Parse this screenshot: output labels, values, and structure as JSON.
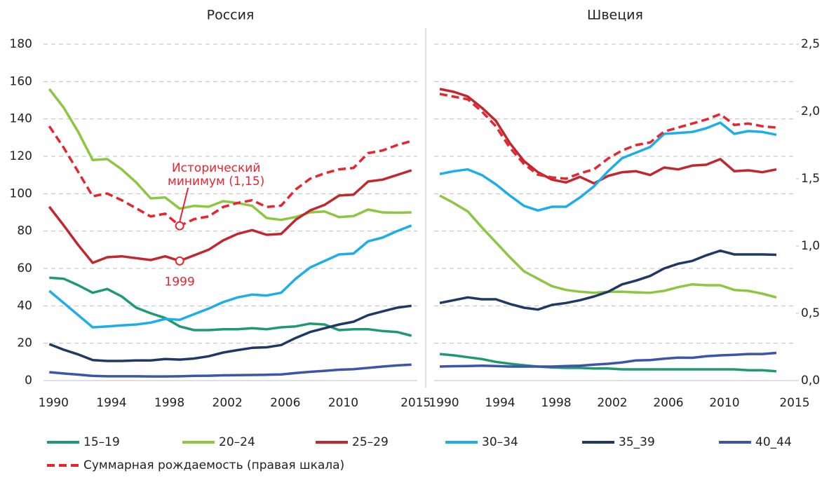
{
  "chart_data": [
    {
      "type": "line",
      "title": "Россия",
      "x": [
        1990,
        1991,
        1992,
        1993,
        1994,
        1995,
        1996,
        1997,
        1998,
        1999,
        2000,
        2001,
        2002,
        2003,
        2004,
        2005,
        2006,
        2007,
        2008,
        2009,
        2010,
        2011,
        2012,
        2013,
        2014,
        2015
      ],
      "xlim": [
        1989.6,
        2015.4
      ],
      "xticks": [
        1990,
        1994,
        1998,
        2002,
        2006,
        2010,
        2015
      ],
      "ylim": [
        0,
        180
      ],
      "yticks": [
        0,
        20,
        40,
        60,
        80,
        100,
        120,
        140,
        160,
        180
      ],
      "y2lim": [
        0,
        2.5
      ],
      "grid": true,
      "series": [
        {
          "name": "15–19",
          "color": "#1f9a70",
          "values": [
            55,
            54.5,
            51,
            47,
            49,
            45,
            39,
            36,
            33.5,
            29,
            27,
            27,
            27.5,
            27.5,
            28,
            27.5,
            28.5,
            29,
            30.5,
            30,
            27,
            27.5,
            27.5,
            26.5,
            26,
            24
          ]
        },
        {
          "name": "20–24",
          "color": "#8dc63f",
          "values": [
            156,
            146,
            133,
            118,
            118.5,
            113,
            106,
            97.5,
            98,
            92,
            93.5,
            93,
            96,
            95,
            93.5,
            87,
            86,
            87.5,
            90,
            90.5,
            87.5,
            88,
            91.5,
            90,
            89.8,
            90
          ]
        },
        {
          "name": "25–29",
          "color": "#c1272d",
          "values": [
            93,
            83,
            72.5,
            63,
            66,
            66.5,
            65.5,
            64.5,
            66.5,
            64,
            67,
            70,
            75,
            78.5,
            80.5,
            78,
            78.5,
            86,
            91,
            94,
            99,
            99.5,
            106.5,
            107.5,
            110,
            112.5
          ]
        },
        {
          "name": "30–34",
          "color": "#1baee8",
          "values": [
            48,
            41.5,
            35,
            28.5,
            29,
            29.5,
            30,
            31,
            33,
            32.5,
            35.5,
            38.5,
            42,
            44.5,
            46,
            45.5,
            47,
            54.5,
            60.5,
            64,
            67.5,
            68,
            74.5,
            76.5,
            80,
            83
          ]
        },
        {
          "name": "35_39",
          "color": "#1f3864",
          "values": [
            19.5,
            16.5,
            14,
            11,
            10.5,
            10.5,
            10.8,
            10.8,
            11.5,
            11.2,
            11.8,
            13,
            15,
            16.3,
            17.5,
            17.8,
            19,
            22.8,
            26,
            28,
            30,
            31.5,
            35,
            37,
            39,
            40
          ]
        },
        {
          "name": "40_44",
          "color": "#3c55a8",
          "values": [
            4.5,
            3.8,
            3.2,
            2.5,
            2.3,
            2.3,
            2.3,
            2.2,
            2.2,
            2.3,
            2.5,
            2.6,
            2.8,
            2.9,
            3,
            3.1,
            3.3,
            4,
            4.7,
            5.2,
            5.8,
            6.1,
            6.8,
            7.5,
            8.1,
            8.5
          ]
        },
        {
          "name": "Суммарная рождаемость (правая шкала)",
          "color": "#e8242f",
          "axis": "y2",
          "dashed": true,
          "values": [
            1.89,
            1.73,
            1.55,
            1.37,
            1.39,
            1.34,
            1.28,
            1.22,
            1.24,
            1.15,
            1.2,
            1.22,
            1.29,
            1.32,
            1.34,
            1.29,
            1.3,
            1.42,
            1.5,
            1.54,
            1.57,
            1.58,
            1.69,
            1.71,
            1.75,
            1.78
          ]
        }
      ],
      "annotations": [
        {
          "text": "Исторический минимум (1,15)",
          "series": 6,
          "index": 9
        },
        {
          "text": "1999",
          "series": 2,
          "index": 9
        }
      ]
    },
    {
      "type": "line",
      "title": "Швеция",
      "x": [
        1990,
        1991,
        1992,
        1993,
        1994,
        1995,
        1996,
        1997,
        1998,
        1999,
        2000,
        2001,
        2002,
        2003,
        2004,
        2005,
        2006,
        2007,
        2008,
        2009,
        2010,
        2011,
        2012,
        2013,
        2014
      ],
      "xlim": [
        1989.6,
        2015.4
      ],
      "xticks": [
        1990,
        1994,
        1998,
        2002,
        2006,
        2010,
        2015
      ],
      "ylim": [
        0,
        180
      ],
      "yticks": [
        0,
        20,
        40,
        60,
        80,
        100,
        120,
        140,
        160,
        180
      ],
      "y2lim": [
        0,
        2.5
      ],
      "y2ticks": [
        {
          "value": 0,
          "label": "0,0"
        },
        {
          "value": 0.5,
          "label": "0,5"
        },
        {
          "value": 1,
          "label": "1,0"
        },
        {
          "value": 1.5,
          "label": "1,5"
        },
        {
          "value": 2,
          "label": "2,0"
        },
        {
          "value": 2.5,
          "label": "2,5"
        }
      ],
      "grid": true,
      "series": [
        {
          "color": "#1f9a70",
          "values": [
            14.2,
            13.5,
            12.5,
            11.5,
            10,
            9,
            8.2,
            7.5,
            7,
            6.8,
            6.8,
            6.5,
            6.5,
            6,
            6,
            6,
            6,
            6,
            6,
            6,
            6,
            6,
            5.5,
            5.5,
            5
          ]
        },
        {
          "color": "#8dc63f",
          "values": [
            99,
            95,
            90.5,
            82,
            74,
            66,
            58.5,
            54.5,
            50.5,
            48.5,
            47.5,
            47,
            47.5,
            47.5,
            47.2,
            47,
            48,
            50,
            51.5,
            51,
            51,
            48.5,
            48,
            46.5,
            44.5
          ]
        },
        {
          "color": "#c1272d",
          "values": [
            156,
            154.5,
            152,
            146,
            139,
            127,
            117.5,
            111.5,
            107.5,
            106,
            109,
            105.5,
            109.5,
            111.5,
            112,
            110,
            114,
            113,
            115,
            115.5,
            118.5,
            112,
            112.5,
            111.5,
            113
          ]
        },
        {
          "color": "#1baee8",
          "values": [
            110.5,
            112,
            113,
            110,
            105,
            99,
            93.5,
            91,
            93,
            93,
            98,
            104,
            112,
            119,
            122,
            125,
            132,
            132.5,
            133,
            135,
            138,
            132,
            133.5,
            133,
            131.5
          ]
        },
        {
          "color": "#1f3864",
          "values": [
            41.5,
            43,
            44.5,
            43.5,
            43.5,
            41,
            39,
            38,
            40.5,
            41.5,
            43,
            45,
            47.5,
            51.5,
            53.5,
            56,
            60,
            62.5,
            64,
            67,
            69.5,
            67.5,
            67.5,
            67.5,
            67.3
          ]
        },
        {
          "color": "#3c55a8",
          "values": [
            7.5,
            7.7,
            7.8,
            8,
            7.8,
            7.5,
            7.5,
            7.5,
            7.5,
            7.8,
            8,
            8.5,
            9,
            9.7,
            10.8,
            11,
            11.7,
            12.3,
            12.2,
            13,
            13.5,
            13.8,
            14.2,
            14.2,
            14.8
          ]
        },
        {
          "color": "#e8242f",
          "axis": "y2",
          "dashed": true,
          "values": [
            2.13,
            2.11,
            2.09,
            2,
            1.89,
            1.73,
            1.61,
            1.53,
            1.51,
            1.5,
            1.54,
            1.57,
            1.65,
            1.71,
            1.75,
            1.77,
            1.85,
            1.88,
            1.91,
            1.94,
            1.98,
            1.9,
            1.91,
            1.89,
            1.88
          ]
        }
      ]
    }
  ]
}
